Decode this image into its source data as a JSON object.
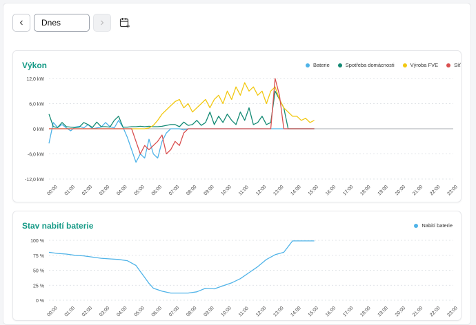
{
  "toolbar": {
    "date_value": "Dnes",
    "prev_icon": "chevron-left-icon",
    "next_icon": "chevron-right-icon",
    "calendar_icon": "calendar-plus-icon"
  },
  "chart_data": [
    {
      "type": "line",
      "title": "Výkon",
      "xlabel": "",
      "ylabel": "",
      "unit": "kW",
      "ylim": [
        -12,
        12
      ],
      "yticks": [
        "12,0 kW",
        "6,0 kW",
        "0 kW",
        "-6,0 kW",
        "-12,0 kW"
      ],
      "grid": true,
      "legend": "top-right",
      "xticks": [
        "00:00",
        "01:00",
        "02:00",
        "03:00",
        "04:00",
        "05:00",
        "06:00",
        "07:00",
        "08:00",
        "09:00",
        "10:00",
        "11:00",
        "12:00",
        "13:00",
        "14:00",
        "15:00",
        "16:00",
        "17:00",
        "18:00",
        "19:00",
        "20:00",
        "21:00",
        "22:00",
        "23:00"
      ],
      "x": [
        0,
        0.25,
        0.5,
        0.75,
        1,
        1.25,
        1.5,
        1.75,
        2,
        2.25,
        2.5,
        2.75,
        3,
        3.25,
        3.5,
        3.75,
        4,
        4.25,
        4.5,
        4.75,
        5,
        5.25,
        5.5,
        5.75,
        6,
        6.25,
        6.5,
        6.75,
        7,
        7.25,
        7.5,
        7.75,
        8,
        8.25,
        8.5,
        8.75,
        9,
        9.25,
        9.5,
        9.75,
        10,
        10.25,
        10.5,
        10.75,
        11,
        11.25,
        11.5,
        11.75,
        12,
        12.25,
        12.5,
        12.75,
        13,
        13.25,
        13.5,
        13.75,
        14,
        14.25,
        14.5,
        14.75,
        15,
        15.25
      ],
      "series": [
        {
          "name": "Baterie",
          "color": "#4fb3e8",
          "values": [
            -3.5,
            1.5,
            0.3,
            1,
            0.2,
            -0.5,
            0.4,
            0.6,
            0.2,
            1,
            0,
            0.2,
            0.4,
            1.5,
            0.5,
            0.2,
            2,
            0.4,
            -2,
            -5,
            -8,
            -6,
            -7,
            -2.5,
            -6,
            -7,
            -3,
            -1,
            0,
            0,
            0,
            -0.3,
            0,
            0,
            0,
            0,
            0,
            0,
            0,
            0,
            0,
            0,
            0,
            0,
            0,
            0,
            0,
            0,
            0,
            0,
            0,
            0,
            0,
            0,
            0,
            0,
            0,
            0,
            0,
            0,
            0,
            0
          ]
        },
        {
          "name": "Spotřeba domácnosti",
          "color": "#148a74",
          "values": [
            3.5,
            0.5,
            0.3,
            1.5,
            0.5,
            0.4,
            0.3,
            0.4,
            1.5,
            1,
            0.3,
            1.6,
            0.5,
            0.5,
            0.4,
            2,
            3,
            0.4,
            0.4,
            0.5,
            0.5,
            0.6,
            0.5,
            0.6,
            0.5,
            0.5,
            0.6,
            0.8,
            1,
            1,
            0.5,
            1.6,
            0.8,
            1,
            2,
            0.8,
            1.5,
            4,
            1,
            3,
            1.5,
            3.5,
            2,
            1,
            4,
            2,
            5,
            1,
            1.5,
            3,
            1,
            1.5,
            9,
            7,
            5,
            0,
            0,
            0,
            0,
            0,
            0,
            0
          ]
        },
        {
          "name": "Výroba FVE",
          "color": "#f2c811",
          "values": [
            0,
            0,
            0,
            0,
            0,
            0,
            0,
            0,
            0,
            0,
            0,
            0,
            0,
            0,
            0,
            0,
            0,
            0,
            0,
            0,
            0,
            0,
            0,
            0.2,
            0.8,
            2,
            3.5,
            4.5,
            5.5,
            6.5,
            7,
            5,
            6,
            4,
            5,
            6,
            7,
            5,
            7,
            8,
            6,
            9,
            7,
            10,
            8,
            11,
            9,
            10,
            8,
            9,
            6,
            9,
            10,
            7,
            5,
            4,
            3,
            3,
            2,
            2.5,
            1.5,
            2
          ]
        },
        {
          "name": "Síť",
          "color": "#d94f4f",
          "values": [
            0,
            0,
            0,
            0,
            0,
            0,
            0,
            0,
            0,
            0,
            0,
            0,
            0,
            0,
            0,
            0,
            0,
            0,
            0,
            0,
            -3,
            -6,
            -4,
            -5,
            -4,
            -3,
            -1.5,
            -6,
            -5,
            -3,
            -4,
            -1,
            0,
            0,
            0,
            0,
            0,
            0,
            0,
            0,
            0,
            0,
            0,
            0,
            0,
            0,
            0,
            0,
            0,
            0,
            0,
            0,
            12,
            8,
            0,
            0,
            0,
            0,
            0,
            0,
            0,
            0
          ]
        }
      ]
    },
    {
      "type": "line",
      "title": "Stav nabití baterie",
      "xlabel": "",
      "ylabel": "",
      "unit": "%",
      "ylim": [
        0,
        100
      ],
      "yticks": [
        "100 %",
        "75 %",
        "50 %",
        "25 %",
        "0 %"
      ],
      "grid": true,
      "legend": "top-right",
      "xticks": [
        "00:00",
        "01:00",
        "02:00",
        "03:00",
        "04:00",
        "05:00",
        "06:00",
        "07:00",
        "08:00",
        "09:00",
        "10:00",
        "11:00",
        "12:00",
        "13:00",
        "14:00",
        "15:00",
        "16:00",
        "17:00",
        "18:00",
        "19:00",
        "20:00",
        "21:00",
        "22:00",
        "23:00"
      ],
      "x": [
        0,
        0.5,
        1,
        1.5,
        2,
        2.5,
        3,
        3.5,
        4,
        4.5,
        5,
        5.25,
        5.5,
        5.75,
        6,
        6.5,
        7,
        7.5,
        8,
        8.5,
        9,
        9.5,
        10,
        10.5,
        11,
        11.5,
        12,
        12.5,
        13,
        13.5,
        14,
        14.5,
        15,
        15.25
      ],
      "series": [
        {
          "name": "Nabití baterie",
          "color": "#4fb3e8",
          "values": [
            80,
            78,
            77,
            75,
            74,
            72,
            70,
            69,
            68,
            66,
            58,
            48,
            38,
            28,
            20,
            15,
            12,
            12,
            12,
            14,
            20,
            19,
            24,
            29,
            36,
            46,
            56,
            68,
            76,
            80,
            99,
            99,
            99,
            99
          ]
        }
      ]
    }
  ]
}
